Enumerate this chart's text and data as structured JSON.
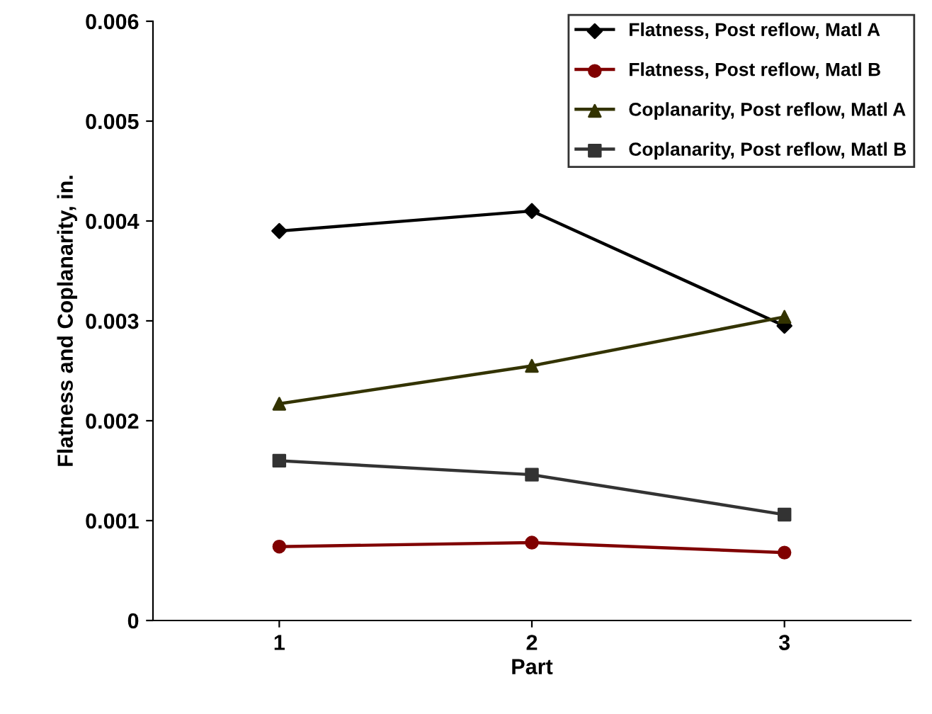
{
  "chart_data": {
    "type": "line",
    "xlabel": "Part",
    "ylabel": "Flatness and Coplanarity, in.",
    "x": [
      1,
      2,
      3
    ],
    "xlim": [
      0.5,
      3.5
    ],
    "xticks": [
      1,
      2,
      3
    ],
    "ylim": [
      0,
      0.006
    ],
    "yticks": [
      {
        "value": 0,
        "label": "0"
      },
      {
        "value": 0.001,
        "label": "0.001"
      },
      {
        "value": 0.002,
        "label": "0.002"
      },
      {
        "value": 0.003,
        "label": "0.003"
      },
      {
        "value": 0.004,
        "label": "0.004"
      },
      {
        "value": 0.005,
        "label": "0.005"
      },
      {
        "value": 0.006,
        "label": "0.006"
      }
    ],
    "grid": false,
    "legend": "top right",
    "line_style": "solid",
    "series": [
      {
        "name": "Flatness, Post reflow, Matl A",
        "color": "#000000",
        "marker": "diamond",
        "values": [
          0.0039,
          0.0041,
          0.00295
        ]
      },
      {
        "name": "Flatness, Post reflow, Matl B",
        "color": "#800000",
        "marker": "circle",
        "values": [
          0.00074,
          0.00078,
          0.00068
        ]
      },
      {
        "name": "Coplanarity, Post reflow, Matl A",
        "color": "#333300",
        "marker": "triangle",
        "values": [
          0.00217,
          0.00255,
          0.00304
        ]
      },
      {
        "name": "Coplanarity, Post reflow, Matl B",
        "color": "#333333",
        "marker": "square",
        "values": [
          0.0016,
          0.00146,
          0.00106
        ]
      }
    ]
  }
}
